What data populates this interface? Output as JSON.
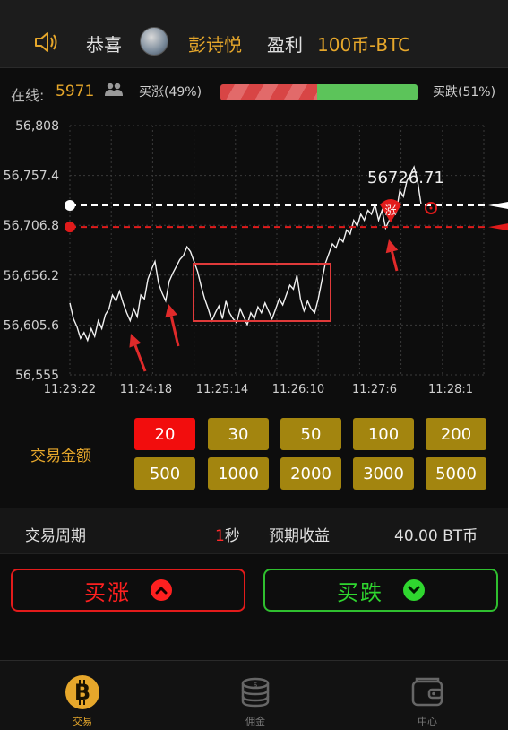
{
  "ticker": {
    "congrats": "恭喜",
    "username": "彭诗悦",
    "profit_word": "盈利",
    "profit_amount": "100币-BTC"
  },
  "status": {
    "online_label": "在线:",
    "online_count": "5971",
    "up_label": "买涨(49%)",
    "down_label": "买跌(51%)",
    "up_ratio": 0.49
  },
  "chart_data": {
    "type": "line",
    "y_ticks": [
      "56,808",
      "56,757.4",
      "56,706.8",
      "56,656.2",
      "56,605.6",
      "56,555"
    ],
    "x_ticks": [
      "11:23:22",
      "11:24:18",
      "11:25:14",
      "11:26:10",
      "11:27:6",
      "11:28:1"
    ],
    "ylim": [
      56555,
      56808
    ],
    "current_price_label": "56726.71",
    "current_price": 56726.71,
    "entry_price": 56705,
    "white_line_price": 56727,
    "entry_marker_text": "涨",
    "grid": true,
    "series": [
      {
        "values": [
          56628,
          56612,
          56604,
          56592,
          56598,
          56590,
          56602,
          56594,
          56610,
          56602,
          56616,
          56622,
          56636,
          56630,
          56640,
          56628,
          56618,
          56610,
          56622,
          56614,
          56636,
          56632,
          56652,
          56662,
          56670,
          56648,
          56638,
          56630,
          56650,
          56658,
          56665,
          56672,
          56676,
          56685,
          56680,
          56670,
          56660,
          56645,
          56632,
          56622,
          56610,
          56618,
          56625,
          56612,
          56630,
          56618,
          56612,
          56608,
          56622,
          56614,
          56606,
          56618,
          56612,
          56624,
          56618,
          56628,
          56620,
          56612,
          56622,
          56632,
          56626,
          56636,
          56646,
          56642,
          56656,
          56632,
          56620,
          56630,
          56622,
          56618,
          56632,
          56650,
          56668,
          56678,
          56688,
          56684,
          56694,
          56690,
          56702,
          56698,
          56712,
          56706,
          56718,
          56712,
          56722,
          56718,
          56728,
          56712,
          56722,
          56704,
          56712,
          56726,
          56720,
          56742,
          56736,
          56752,
          56758,
          56766,
          56752,
          56728
        ]
      }
    ]
  },
  "amount": {
    "label": "交易金额",
    "options": [
      "20",
      "30",
      "50",
      "100",
      "200",
      "500",
      "1000",
      "2000",
      "3000",
      "5000"
    ]
  },
  "period": {
    "label": "交易周期",
    "value_num": "1",
    "value_unit": "秒",
    "profit_label": "预期收益",
    "profit_value": "40.00 BT币"
  },
  "actions": {
    "buy_up": "买涨",
    "buy_down": "买跌"
  },
  "nav": {
    "trade": "交易",
    "commission": "佣金",
    "center": "中心"
  },
  "colors": {
    "accent": "#e6a72b",
    "up": "#ff2020",
    "down": "#2fd62f",
    "selected_amount": "#f20d0d",
    "amount_button": "#a3850f"
  }
}
